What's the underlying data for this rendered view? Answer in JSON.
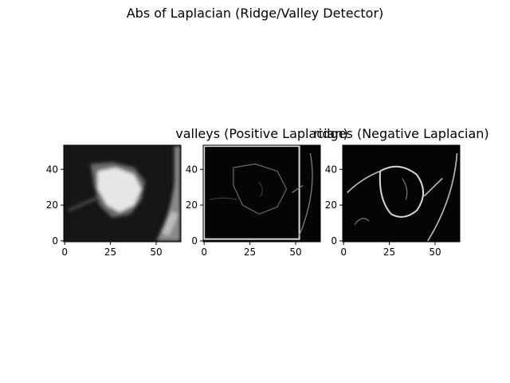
{
  "suptitle": "Abs of Laplacian (Ridge/Valley Detector)",
  "chart_data": [
    {
      "type": "heatmap",
      "title": "",
      "colormap": "gray",
      "image_shape": [
        54,
        64
      ],
      "content": "CT image patch: bright irregular nodule centred near (30, 22) in darker lung tissue; grey band on the right edge",
      "xticks": [
        0,
        25,
        50
      ],
      "yticks": [
        0,
        20,
        40
      ],
      "xlim": [
        -0.5,
        63.5
      ],
      "ylim": [
        53.5,
        -0.5
      ]
    },
    {
      "type": "heatmap",
      "title": "valleys (Positive Laplacian)",
      "colormap": "gray",
      "image_shape": [
        54,
        64
      ],
      "content": "mostly black; thin bright rectangular border near the image edges and faint outline of the nodule",
      "xticks": [
        0,
        25,
        50
      ],
      "yticks": [
        0,
        20,
        40
      ],
      "xlim": [
        -0.5,
        63.5
      ],
      "ylim": [
        53.5,
        -0.5
      ]
    },
    {
      "type": "heatmap",
      "title": "ridges (Negative Laplacian)",
      "colormap": "gray",
      "image_shape": [
        54,
        64
      ],
      "content": "black background with bright curved ridge lines tracing the nodule boundary and vessels",
      "xticks": [
        0,
        25,
        50
      ],
      "yticks": [
        0,
        20,
        40
      ],
      "xlim": [
        -0.5,
        63.5
      ],
      "ylim": [
        53.5,
        -0.5
      ]
    }
  ]
}
